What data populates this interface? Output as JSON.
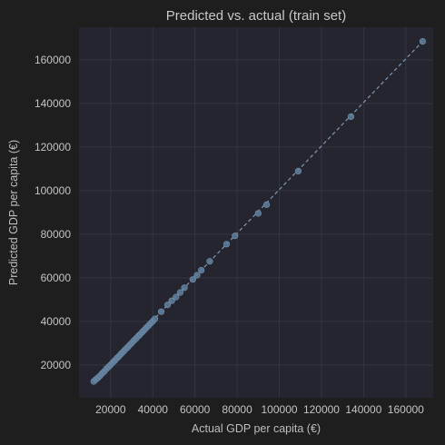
{
  "chart_data": {
    "type": "scatter",
    "title": "Predicted vs. actual (train set)",
    "xlabel": "Actual GDP per capita (€)",
    "ylabel": "Predicted GDP per capita (€)",
    "xlim": [
      5000,
      173000
    ],
    "ylim": [
      5000,
      175000
    ],
    "xticks": [
      20000,
      40000,
      60000,
      80000,
      100000,
      120000,
      140000,
      160000
    ],
    "yticks": [
      20000,
      40000,
      60000,
      80000,
      100000,
      120000,
      140000,
      160000
    ],
    "grid": true,
    "reference_line": {
      "style": "dashed",
      "from": [
        12000,
        12500
      ],
      "to": [
        168000,
        168500
      ]
    },
    "colors": {
      "background": "#1e1e1e",
      "plot_background": "#252530",
      "grid": "#353541",
      "points": "#5f7f9c",
      "reference_line": "#7d99b3",
      "text": "#c4c4c4"
    },
    "points": [
      {
        "x": 12000,
        "y": 12500
      },
      {
        "x": 13000,
        "y": 13400
      },
      {
        "x": 14000,
        "y": 14200
      },
      {
        "x": 15000,
        "y": 15100
      },
      {
        "x": 16000,
        "y": 16200
      },
      {
        "x": 17000,
        "y": 17100
      },
      {
        "x": 18000,
        "y": 18300
      },
      {
        "x": 19000,
        "y": 19200
      },
      {
        "x": 20000,
        "y": 20100
      },
      {
        "x": 21000,
        "y": 21200
      },
      {
        "x": 22000,
        "y": 22100
      },
      {
        "x": 23000,
        "y": 23200
      },
      {
        "x": 24000,
        "y": 24100
      },
      {
        "x": 25000,
        "y": 25200
      },
      {
        "x": 26000,
        "y": 26100
      },
      {
        "x": 27000,
        "y": 27200
      },
      {
        "x": 28000,
        "y": 28100
      },
      {
        "x": 29000,
        "y": 29200
      },
      {
        "x": 30000,
        "y": 30100
      },
      {
        "x": 31000,
        "y": 31200
      },
      {
        "x": 32000,
        "y": 32100
      },
      {
        "x": 33000,
        "y": 33200
      },
      {
        "x": 34000,
        "y": 34100
      },
      {
        "x": 35000,
        "y": 35200
      },
      {
        "x": 36000,
        "y": 36100
      },
      {
        "x": 37000,
        "y": 37200
      },
      {
        "x": 38000,
        "y": 38100
      },
      {
        "x": 39000,
        "y": 39200
      },
      {
        "x": 40000,
        "y": 40100
      },
      {
        "x": 41000,
        "y": 41200
      },
      {
        "x": 44000,
        "y": 44500
      },
      {
        "x": 47000,
        "y": 47600
      },
      {
        "x": 49000,
        "y": 49500
      },
      {
        "x": 51000,
        "y": 51200
      },
      {
        "x": 53000,
        "y": 53300
      },
      {
        "x": 55000,
        "y": 55500
      },
      {
        "x": 59000,
        "y": 59300
      },
      {
        "x": 61000,
        "y": 61200
      },
      {
        "x": 63000,
        "y": 63500
      },
      {
        "x": 67000,
        "y": 67600
      },
      {
        "x": 75000,
        "y": 75500
      },
      {
        "x": 79000,
        "y": 79300
      },
      {
        "x": 90000,
        "y": 89600
      },
      {
        "x": 94000,
        "y": 93600
      },
      {
        "x": 109000,
        "y": 109000
      },
      {
        "x": 134000,
        "y": 134000
      },
      {
        "x": 168000,
        "y": 168500
      }
    ]
  }
}
